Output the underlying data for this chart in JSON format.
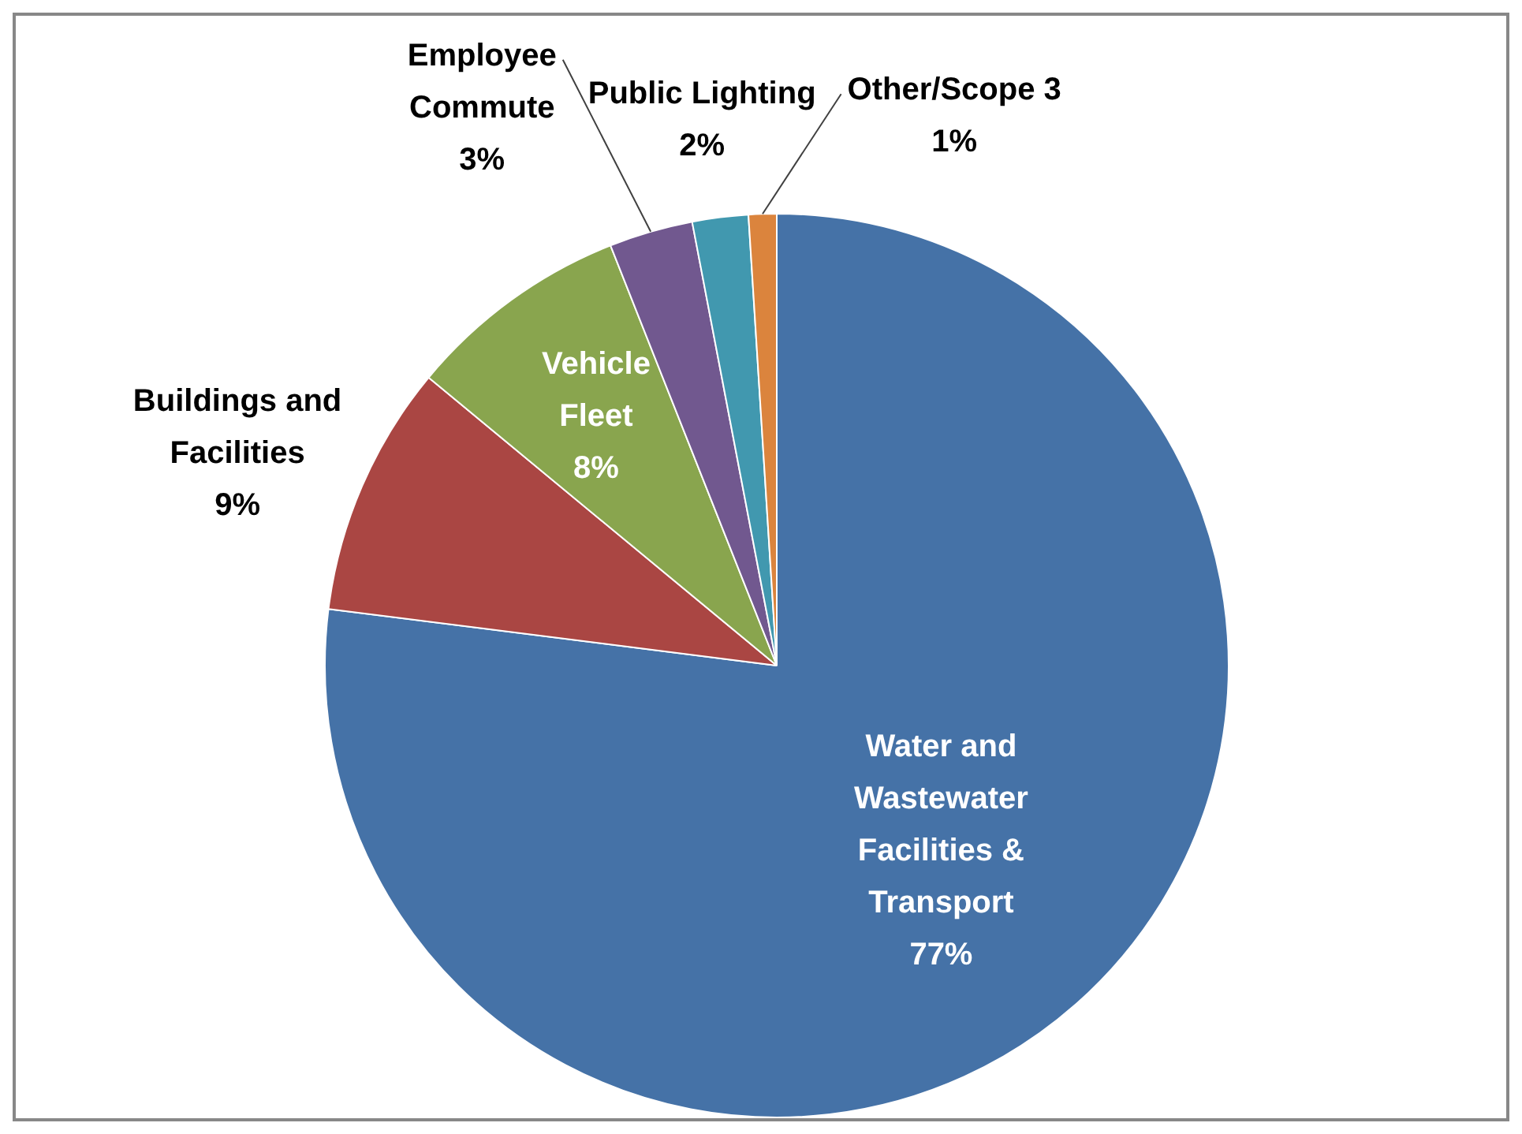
{
  "chart_data": {
    "type": "pie",
    "categories": [
      "Water and Wastewater Facilities & Transport",
      "Buildings and Facilities",
      "Vehicle Fleet",
      "Employee Commute",
      "Public Lighting",
      "Other/Scope 3"
    ],
    "values": [
      77,
      9,
      8,
      3,
      2,
      1
    ],
    "colors": [
      "#4572a7",
      "#aa4643",
      "#89a54e",
      "#71588f",
      "#4198af",
      "#db843d"
    ],
    "value_labels": [
      "77%",
      "9%",
      "8%",
      "3%",
      "2%",
      "1%"
    ],
    "legend": false
  }
}
